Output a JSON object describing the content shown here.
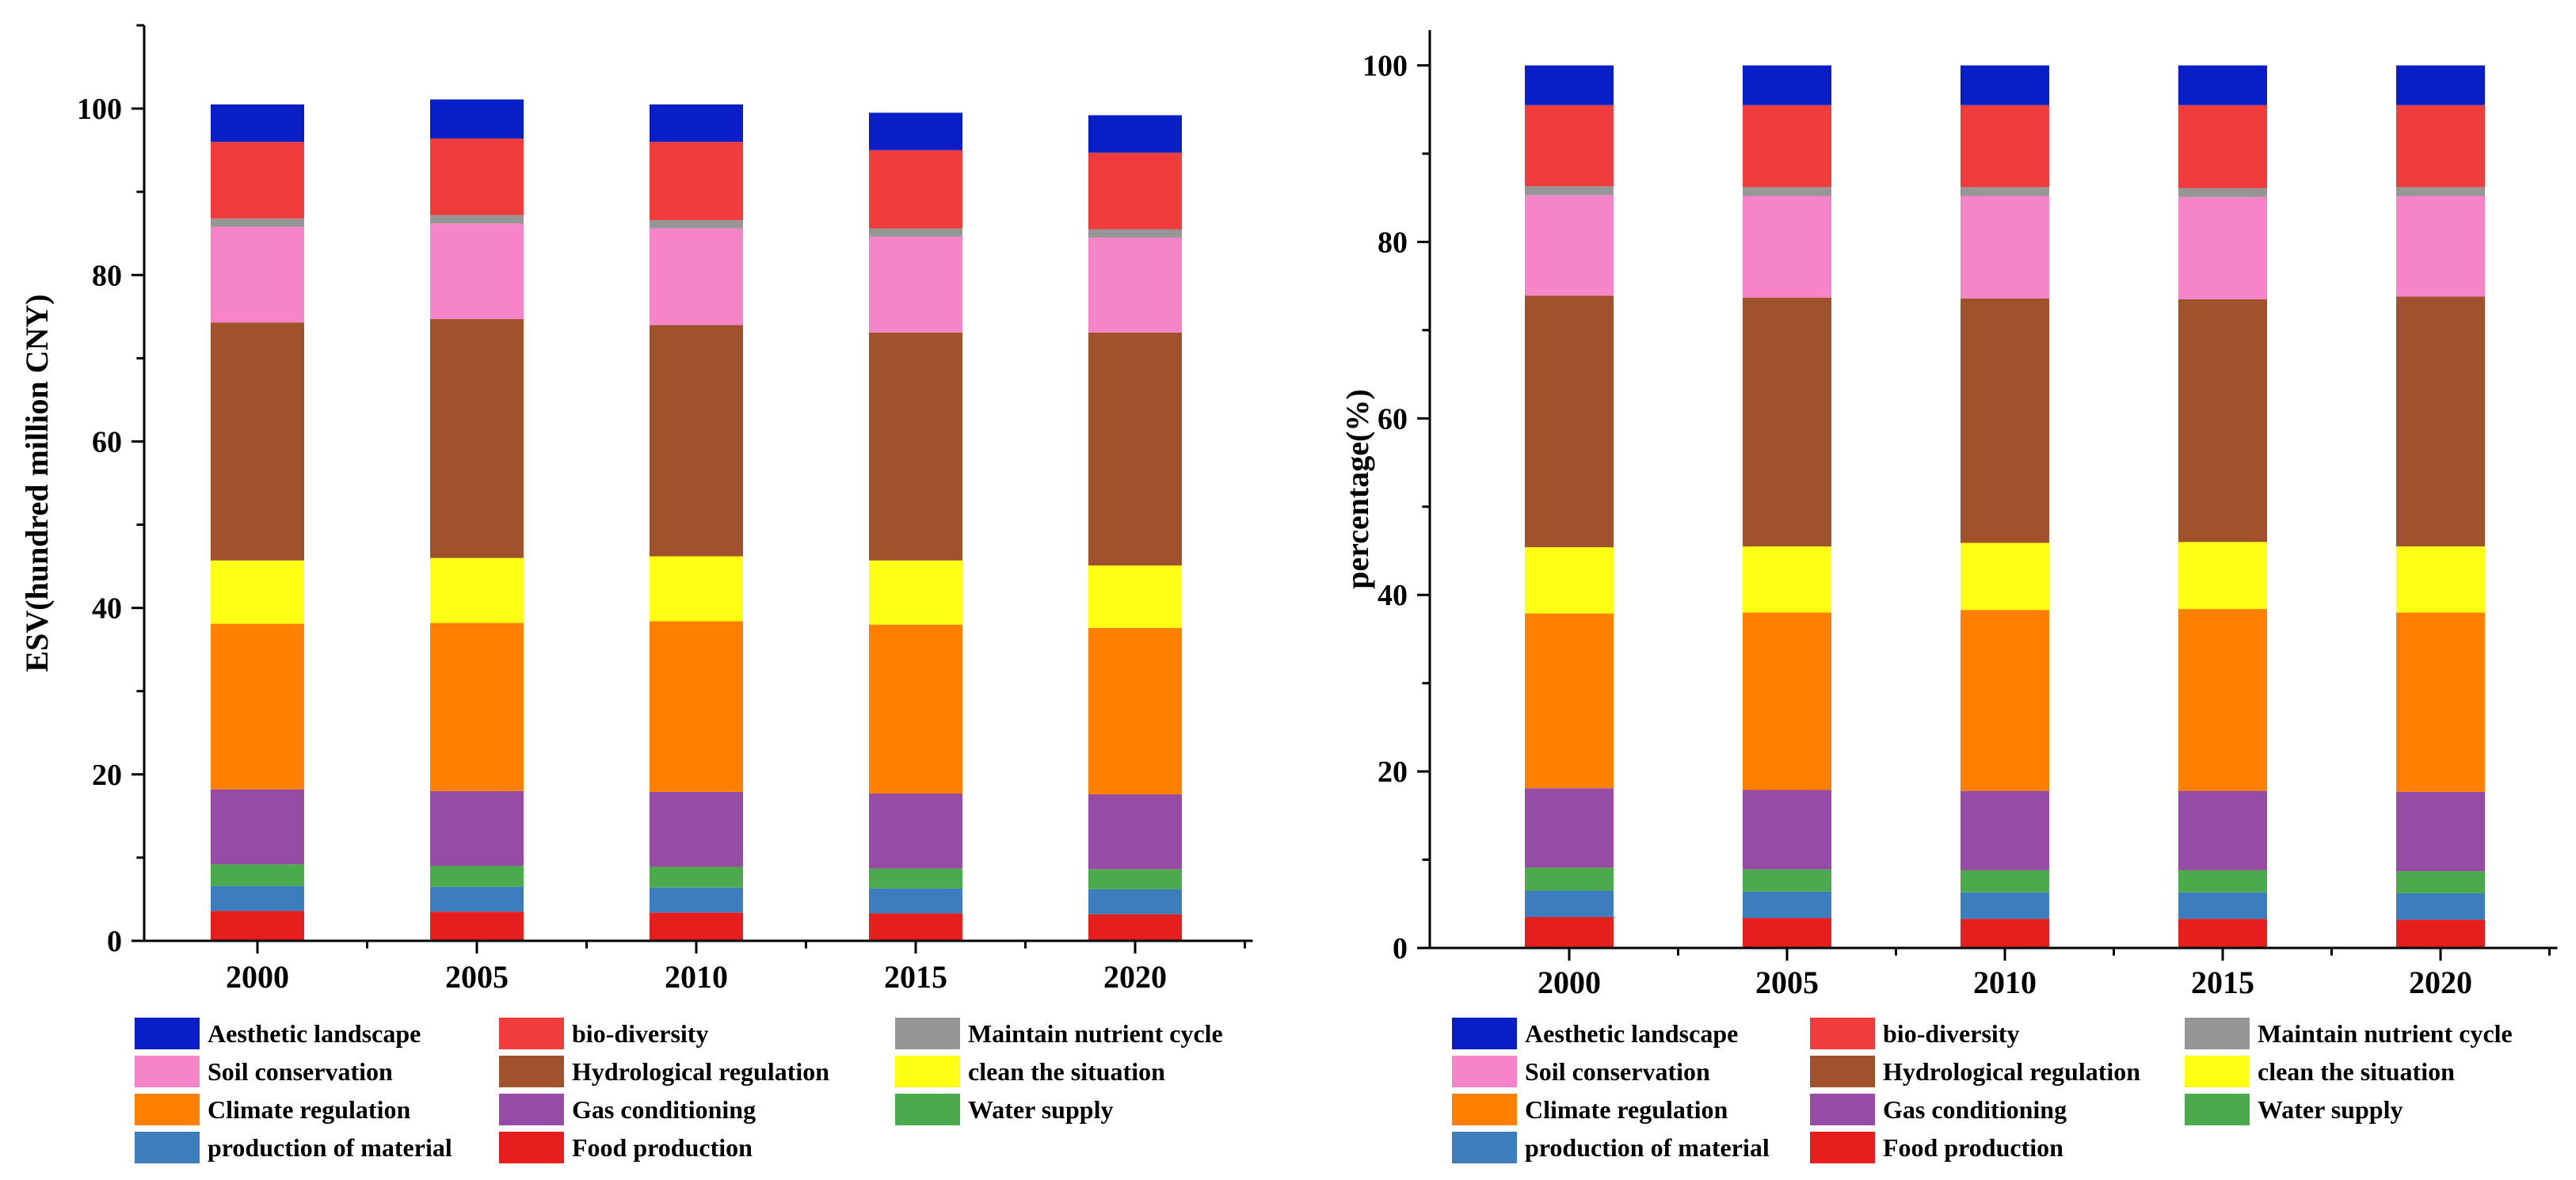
{
  "colors": {
    "Aesthetic landscape": "#0a1ec8",
    "bio-diversity": "#f03c3c",
    "Maintain nutrient cycle": "#969696",
    "Soil conservation": "#f585c8",
    "Hydrological regulation": "#a0522d",
    "clean the situation": "#ffff14",
    "Climate regulation": "#ff8000",
    "Gas conditioning": "#964ba5",
    "Water supply": "#4baa4b",
    "production of material": "#3c7dbe",
    "Food production": "#e61e1e"
  },
  "chart_data": [
    {
      "type": "bar",
      "stacked": true,
      "ylabel": "ESV(hundred million CNY)",
      "xlabel": "",
      "ylim": [
        0,
        110
      ],
      "yticks": [
        "0",
        "20",
        "40",
        "60",
        "80",
        "100"
      ],
      "categories": [
        "2000",
        "2005",
        "2010",
        "2015",
        "2020"
      ],
      "series": [
        {
          "name": "Food production",
          "values": [
            3.6,
            3.5,
            3.4,
            3.3,
            3.2
          ]
        },
        {
          "name": "production of material",
          "values": [
            3.0,
            3.0,
            3.0,
            3.0,
            3.0
          ]
        },
        {
          "name": "Water supply",
          "values": [
            2.6,
            2.5,
            2.5,
            2.4,
            2.4
          ]
        },
        {
          "name": "Gas conditioning",
          "values": [
            9.0,
            9.0,
            9.0,
            9.0,
            9.0
          ]
        },
        {
          "name": "Climate regulation",
          "values": [
            19.9,
            20.2,
            20.5,
            20.3,
            20.0
          ]
        },
        {
          "name": "clean the situation",
          "values": [
            7.6,
            7.8,
            7.8,
            7.7,
            7.5
          ]
        },
        {
          "name": "Hydrological regulation",
          "values": [
            28.6,
            28.7,
            27.8,
            27.4,
            28.0
          ]
        },
        {
          "name": "Soil conservation",
          "values": [
            11.5,
            11.5,
            11.6,
            11.5,
            11.4
          ]
        },
        {
          "name": "Maintain nutrient cycle",
          "values": [
            1.0,
            1.0,
            1.0,
            1.0,
            1.0
          ]
        },
        {
          "name": "bio-diversity",
          "values": [
            9.2,
            9.2,
            9.4,
            9.4,
            9.2
          ]
        },
        {
          "name": "Aesthetic landscape",
          "values": [
            4.5,
            4.7,
            4.5,
            4.5,
            4.5
          ]
        }
      ]
    },
    {
      "type": "bar",
      "stacked": true,
      "ylabel": "percentage(%)",
      "xlabel": "",
      "ylim": [
        0,
        104
      ],
      "yticks": [
        "0",
        "20",
        "40",
        "60",
        "80",
        "100"
      ],
      "categories": [
        "2000",
        "2005",
        "2010",
        "2015",
        "2020"
      ],
      "series": [
        {
          "name": "Food production",
          "values": [
            3.5,
            3.4,
            3.3,
            3.3,
            3.2
          ]
        },
        {
          "name": "production of material",
          "values": [
            3.0,
            3.0,
            3.0,
            3.0,
            3.0
          ]
        },
        {
          "name": "Water supply",
          "values": [
            2.6,
            2.5,
            2.5,
            2.5,
            2.5
          ]
        },
        {
          "name": "Gas conditioning",
          "values": [
            9.0,
            9.0,
            9.0,
            9.0,
            9.0
          ]
        },
        {
          "name": "Climate regulation",
          "values": [
            19.8,
            20.1,
            20.5,
            20.6,
            20.3
          ]
        },
        {
          "name": "clean the situation",
          "values": [
            7.5,
            7.5,
            7.6,
            7.6,
            7.5
          ]
        },
        {
          "name": "Hydrological regulation",
          "values": [
            28.5,
            28.2,
            27.7,
            27.5,
            28.3
          ]
        },
        {
          "name": "Soil conservation",
          "values": [
            11.4,
            11.5,
            11.6,
            11.6,
            11.4
          ]
        },
        {
          "name": "Maintain nutrient cycle",
          "values": [
            1.0,
            1.0,
            1.0,
            1.0,
            1.0
          ]
        },
        {
          "name": "bio-diversity",
          "values": [
            9.2,
            9.3,
            9.3,
            9.4,
            9.3
          ]
        },
        {
          "name": "Aesthetic landscape",
          "values": [
            4.5,
            4.5,
            4.5,
            4.5,
            4.5
          ]
        }
      ]
    }
  ],
  "legend": [
    [
      "Aesthetic landscape",
      "bio-diversity",
      "Maintain nutrient cycle"
    ],
    [
      "Soil conservation",
      "Hydrological regulation",
      "clean the situation"
    ],
    [
      "Climate regulation",
      "Gas conditioning",
      "Water supply"
    ],
    [
      "production of material",
      "Food production"
    ]
  ]
}
